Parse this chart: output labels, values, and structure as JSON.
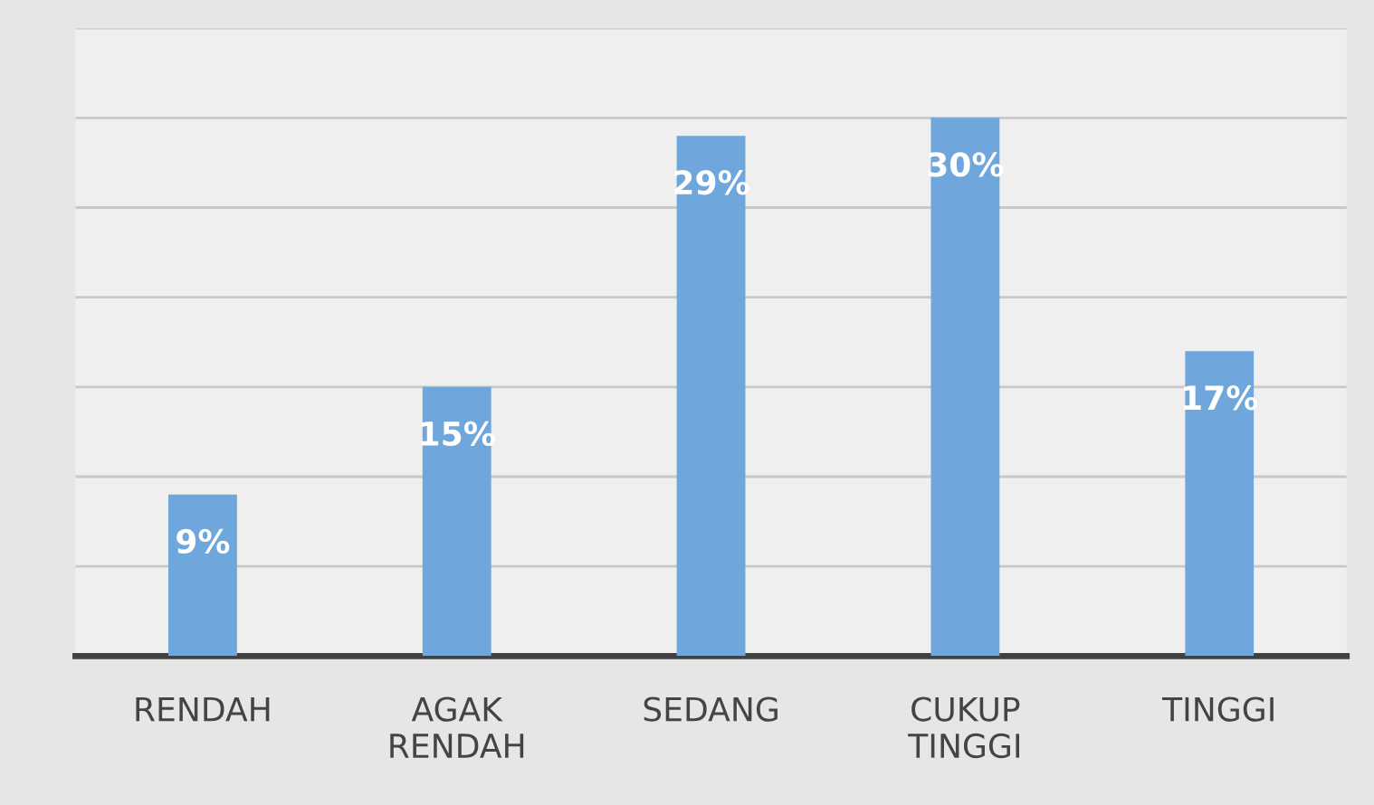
{
  "chart_data": {
    "type": "bar",
    "categories": [
      "RENDAH",
      "AGAK\nRENDAH",
      "SEDANG",
      "CUKUP\nTINGGI",
      "TINGGI"
    ],
    "values": [
      9,
      15,
      29,
      30,
      17
    ],
    "value_labels": [
      "9%",
      "15%",
      "29%",
      "30%",
      "17%"
    ],
    "color": "#6fa6dc",
    "ylim": [
      0,
      35
    ],
    "yticks": [
      {
        "value": 0,
        "label": null
      },
      {
        "value": 5,
        "label": null
      },
      {
        "value": 10,
        "label": null
      },
      {
        "value": 15,
        "label": null
      },
      {
        "value": 20,
        "label": null
      },
      {
        "value": 25,
        "label": null
      },
      {
        "value": 30,
        "label": null
      },
      {
        "value": 35,
        "label": null
      }
    ],
    "grid": "y",
    "tick_labels": "x"
  }
}
